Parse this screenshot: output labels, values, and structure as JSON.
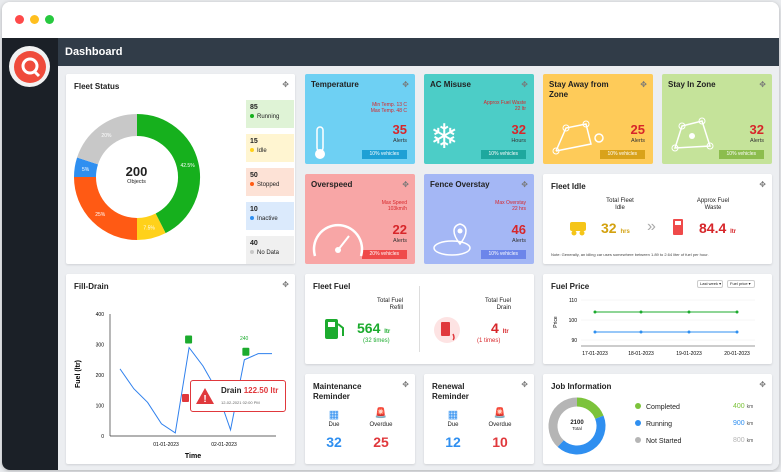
{
  "header": {
    "title": "Dashboard"
  },
  "colors": {
    "running": "#16b01d",
    "idle": "#ffd11a",
    "stopped": "#ff5a14",
    "inactive": "#2f8ff0",
    "nodata": "#c8c8c8"
  },
  "fleet_status": {
    "title": "Fleet Status",
    "total": "200",
    "total_label": "Objects",
    "segments": [
      {
        "label": "42.5%",
        "value": 42.5
      },
      {
        "label": "7.5%",
        "value": 7.5
      },
      {
        "label": "25%",
        "value": 25
      },
      {
        "label": "5%",
        "value": 5
      },
      {
        "label": "20%",
        "value": 20
      }
    ],
    "legend": [
      {
        "count": "85",
        "label": "Running"
      },
      {
        "count": "15",
        "label": "Idle"
      },
      {
        "count": "50",
        "label": "Stopped"
      },
      {
        "count": "10",
        "label": "Inactive"
      },
      {
        "count": "40",
        "label": "No Data"
      }
    ]
  },
  "temperature": {
    "title": "Temperature",
    "line1": "Min Temp. 13 C",
    "line2": "Max Temp. 48 C",
    "value": "35",
    "unit": "Alerts",
    "badge": "10% vehicles"
  },
  "ac_misuse": {
    "title": "AC Misuse",
    "line1": "Approx Fuel Waste",
    "line2": "22 ltr",
    "value": "32",
    "unit": "Hours",
    "badge": "10% vehicles"
  },
  "stay_away": {
    "title": "Stay Away from Zone",
    "value": "25",
    "unit": "Alerts",
    "badge": "10% vehicles"
  },
  "stay_in": {
    "title": "Stay In Zone",
    "value": "32",
    "unit": "Alerts",
    "badge": "10% vehicles"
  },
  "overspeed": {
    "title": "Overspeed",
    "line1": "Max Speed",
    "line2": "103km/h",
    "value": "22",
    "unit": "Alerts",
    "badge": "20% vehicles"
  },
  "fence": {
    "title": "Fence Overstay",
    "line1": "Max Overstay",
    "line2": "22 hrs",
    "value": "46",
    "unit": "Alerts",
    "badge": "10% vehicles"
  },
  "fleet_idle": {
    "title": "Fleet Idle",
    "total_label": "Total Fleet Idle",
    "total_value": "32",
    "total_unit": "hrs",
    "waste_label": "Approx Fuel Waste",
    "waste_value": "84.4",
    "waste_unit": "ltr",
    "note": "Note: Generally, an idling car uses somewhere between 1.89 to 2.64 liter of fuel per hour."
  },
  "fill_drain": {
    "title": "Fill-Drain",
    "ylabel": "Fuel (ltr)",
    "xlabel": "Time",
    "yticks": [
      "400",
      "300",
      "200",
      "100",
      "0"
    ],
    "xticks": [
      "01-01-2023",
      "02-01-2023"
    ],
    "annot": "240",
    "drain_label": "Drain",
    "drain_value": "122.50 ltr",
    "drain_time": "12-02-2021 02:00 PM"
  },
  "fleet_fuel": {
    "title": "Fleet Fuel",
    "refill_label": "Total Fuel Refill",
    "refill_value": "564",
    "refill_unit": "ltr",
    "refill_times": "(32 times)",
    "drain_label": "Total Fuel Drain",
    "drain_value": "4",
    "drain_unit": "ltr",
    "drain_times": "(1 times)"
  },
  "fuel_price": {
    "title": "Fuel Price",
    "select1": "Last week",
    "select2": "Fuel price",
    "ylabel": "Price",
    "yticks": [
      "110",
      "100",
      "90"
    ],
    "xticks": [
      "17-01-2023",
      "18-01-2023",
      "19-01-2023",
      "20-01-2023"
    ]
  },
  "maintenance": {
    "title": "Maintenance Reminder",
    "due_label": "Due",
    "due_value": "32",
    "over_label": "Overdue",
    "over_value": "25"
  },
  "renewal": {
    "title": "Renewal Reminder",
    "due_label": "Due",
    "due_value": "12",
    "over_label": "Overdue",
    "over_value": "10"
  },
  "job": {
    "title": "Job Information",
    "total": "2100",
    "total_label": "Total",
    "items": [
      {
        "label": "Completed",
        "value": "400",
        "unit": "km"
      },
      {
        "label": "Running",
        "value": "900",
        "unit": "km"
      },
      {
        "label": "Not Started",
        "value": "800",
        "unit": "km"
      }
    ]
  },
  "chart_data": [
    {
      "type": "pie",
      "title": "Fleet Status",
      "categories": [
        "Running",
        "Idle",
        "Stopped",
        "Inactive",
        "No Data"
      ],
      "values": [
        85,
        15,
        50,
        10,
        40
      ]
    },
    {
      "type": "line",
      "title": "Fill-Drain",
      "xlabel": "Time",
      "ylabel": "Fuel (ltr)",
      "ylim": [
        0,
        400
      ],
      "series": [
        {
          "values": [
            [
              0,
              220
            ],
            [
              1,
              155
            ],
            [
              2,
              110
            ],
            [
              3,
              40
            ],
            [
              4,
              10
            ],
            [
              5,
              290
            ],
            [
              6,
              230
            ],
            [
              7,
              150
            ],
            [
              8,
              20
            ],
            [
              9,
              250
            ],
            [
              10,
              270
            ],
            [
              11,
              270
            ]
          ]
        }
      ]
    },
    {
      "type": "line",
      "title": "Fuel Price",
      "ylabel": "Price",
      "categories": [
        "17-01-2023",
        "18-01-2023",
        "19-01-2023",
        "20-01-2023"
      ],
      "ylim": [
        90,
        110
      ],
      "series": [
        {
          "values": [
            104,
            104,
            104,
            104
          ]
        },
        {
          "values": [
            94,
            94,
            94,
            94
          ]
        }
      ]
    },
    {
      "type": "pie",
      "title": "Job Information",
      "categories": [
        "Completed",
        "Running",
        "Not Started"
      ],
      "values": [
        400,
        900,
        800
      ]
    }
  ]
}
